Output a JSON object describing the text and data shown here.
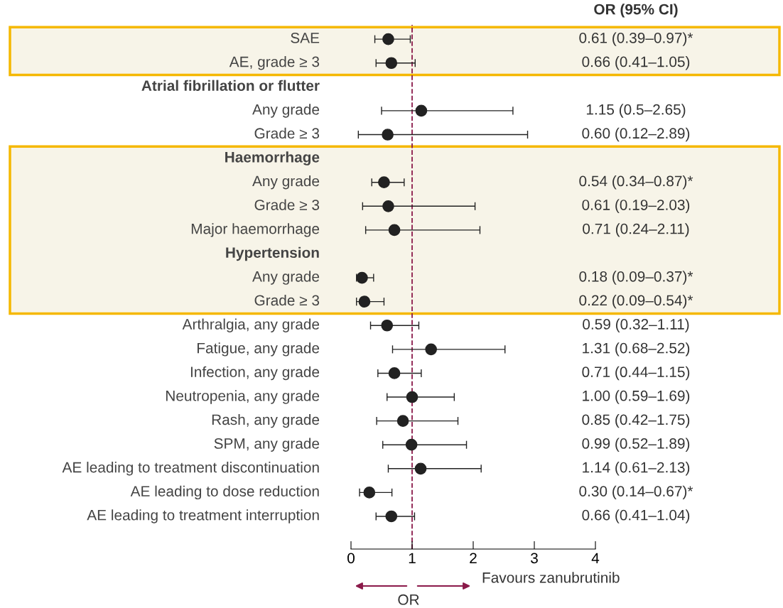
{
  "chart_data": {
    "type": "scatter",
    "orientation": "horizontal",
    "xlabel": "OR",
    "categories": [
      "SAE",
      "AE, grade ≥ 3",
      "Atrial fibrillation or flutter",
      "Any grade",
      "Grade ≥ 3",
      "Haemorrhage",
      "Any grade",
      "Grade ≥ 3",
      "Major haemorrhage",
      "Hypertension",
      "Any grade",
      "Grade ≥ 3",
      "Arthralgia, any grade",
      "Fatigue, any grade",
      "Infection, any grade",
      "Neutropenia, any grade",
      "Rash, any grade",
      "SPM, any grade",
      "AE leading to treatment discontinuation",
      "AE leading to dose reduction",
      "AE leading to treatment interruption"
    ],
    "series": [
      {
        "color": "#222222",
        "values": [
          0.61,
          0.66,
          null,
          1.15,
          0.6,
          null,
          0.54,
          0.61,
          0.71,
          null,
          0.18,
          0.22,
          0.59,
          1.31,
          0.71,
          1.0,
          0.85,
          0.99,
          1.14,
          0.3,
          0.66
        ],
        "errors": [
          [
            0.39,
            0.97
          ],
          [
            0.41,
            1.05
          ],
          null,
          [
            0.5,
            2.65
          ],
          [
            0.12,
            2.89
          ],
          null,
          [
            0.34,
            0.87
          ],
          [
            0.19,
            2.03
          ],
          [
            0.24,
            2.11
          ],
          null,
          [
            0.09,
            0.37
          ],
          [
            0.09,
            0.54
          ],
          [
            0.32,
            1.11
          ],
          [
            0.68,
            2.52
          ],
          [
            0.44,
            1.15
          ],
          [
            0.59,
            1.69
          ],
          [
            0.42,
            1.75
          ],
          [
            0.52,
            1.89
          ],
          [
            0.61,
            2.13
          ],
          [
            0.14,
            0.67
          ],
          [
            0.41,
            1.04
          ]
        ],
        "value_labels": [
          "0.61 (0.39–0.97)*",
          "0.66 (0.41–1.05)",
          null,
          "1.15 (0.5–2.65)",
          "0.60 (0.12–2.89)",
          null,
          "0.54 (0.34–0.87)*",
          "0.61 (0.19–2.03)",
          "0.71 (0.24–2.11)",
          null,
          "0.18 (0.09–0.37)*",
          "0.22 (0.09–0.54)*",
          "0.59 (0.32–1.11)",
          "1.31 (0.68–2.52)",
          "0.71 (0.44–1.15)",
          "1.00 (0.59–1.69)",
          "0.85 (0.42–1.75)",
          "0.99 (0.52–1.89)",
          "1.14 (0.61–2.13)",
          "0.30 (0.14–0.67)*",
          "0.66 (0.41–1.04)"
        ]
      }
    ],
    "xlim": [
      0,
      4
    ],
    "xticks": [
      0,
      1,
      2,
      3,
      4
    ],
    "marker": "circle",
    "grid": false,
    "ref_lines": [
      {
        "axis": "x",
        "value": 1,
        "color": "#8b1a4a",
        "line_style": "dashed"
      }
    ],
    "annotations": [
      "OR (95% CI)",
      "Favours zanubrutinib"
    ]
  }
}
